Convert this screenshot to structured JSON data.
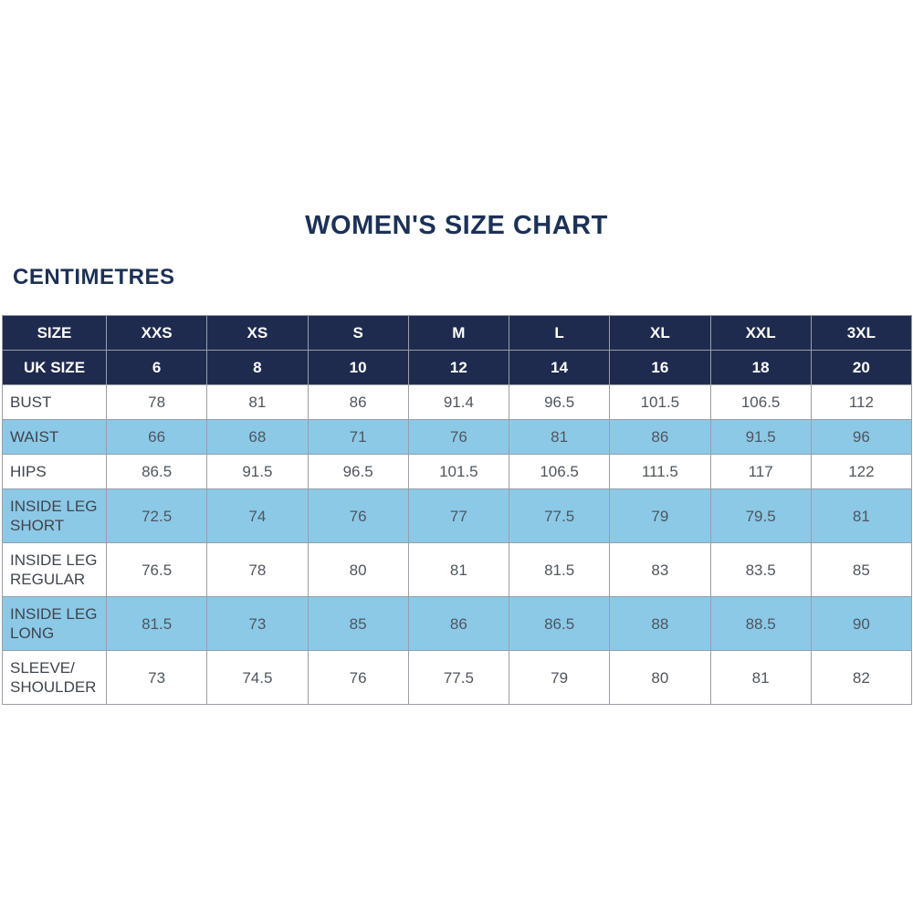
{
  "page": {
    "title": "WOMEN'S SIZE CHART",
    "subtitle": "CENTIMETRES"
  },
  "colors": {
    "navy": "#1f2b4e",
    "lightBlue": "#8cc9e7",
    "border": "#999ea6",
    "titleText": "#1c3156",
    "labelText": "#3e454d",
    "valueText": "#4e565e"
  },
  "table": {
    "size_row": {
      "label": "SIZE",
      "values": [
        "XXS",
        "XS",
        "S",
        "M",
        "L",
        "XL",
        "XXL",
        "3XL"
      ]
    },
    "uk_size_row": {
      "label": "UK SIZE",
      "values": [
        "6",
        "8",
        "10",
        "12",
        "14",
        "16",
        "18",
        "20"
      ]
    },
    "rows": [
      {
        "label": "BUST",
        "values": [
          "78",
          "81",
          "86",
          "91.4",
          "96.5",
          "101.5",
          "106.5",
          "112"
        ]
      },
      {
        "label": "WAIST",
        "values": [
          "66",
          "68",
          "71",
          "76",
          "81",
          "86",
          "91.5",
          "96"
        ]
      },
      {
        "label": "HIPS",
        "values": [
          "86.5",
          "91.5",
          "96.5",
          "101.5",
          "106.5",
          "111.5",
          "117",
          "122"
        ]
      },
      {
        "label": "INSIDE LEG SHORT",
        "values": [
          "72.5",
          "74",
          "76",
          "77",
          "77.5",
          "79",
          "79.5",
          "81"
        ]
      },
      {
        "label": "INSIDE LEG REGULAR",
        "values": [
          "76.5",
          "78",
          "80",
          "81",
          "81.5",
          "83",
          "83.5",
          "85"
        ]
      },
      {
        "label": "INSIDE LEG LONG",
        "values": [
          "81.5",
          "73",
          "85",
          "86",
          "86.5",
          "88",
          "88.5",
          "90"
        ]
      },
      {
        "label": "SLEEVE/ SHOULDER",
        "values": [
          "73",
          "74.5",
          "76",
          "77.5",
          "79",
          "80",
          "81",
          "82"
        ]
      }
    ]
  },
  "chart_data": {
    "type": "table",
    "title": "WOMEN'S SIZE CHART",
    "units": "CENTIMETRES",
    "columns": [
      "SIZE",
      "XXS",
      "XS",
      "S",
      "M",
      "L",
      "XL",
      "XXL",
      "3XL"
    ],
    "rows": [
      [
        "UK SIZE",
        6,
        8,
        10,
        12,
        14,
        16,
        18,
        20
      ],
      [
        "BUST",
        78,
        81,
        86,
        91.4,
        96.5,
        101.5,
        106.5,
        112
      ],
      [
        "WAIST",
        66,
        68,
        71,
        76,
        81,
        86,
        91.5,
        96
      ],
      [
        "HIPS",
        86.5,
        91.5,
        96.5,
        101.5,
        106.5,
        111.5,
        117,
        122
      ],
      [
        "INSIDE LEG SHORT",
        72.5,
        74,
        76,
        77,
        77.5,
        79,
        79.5,
        81
      ],
      [
        "INSIDE LEG REGULAR",
        76.5,
        78,
        80,
        81,
        81.5,
        83,
        83.5,
        85
      ],
      [
        "INSIDE LEG LONG",
        81.5,
        73,
        85,
        86,
        86.5,
        88,
        88.5,
        90
      ],
      [
        "SLEEVE/ SHOULDER",
        73,
        74.5,
        76,
        77.5,
        79,
        80,
        81,
        82
      ]
    ],
    "layout_hints": {
      "header_background": "#1f2b4e",
      "striped_row_background": "#8cc9e7",
      "stripe_pattern": "alternating starting white at BUST row",
      "grid": true
    }
  }
}
